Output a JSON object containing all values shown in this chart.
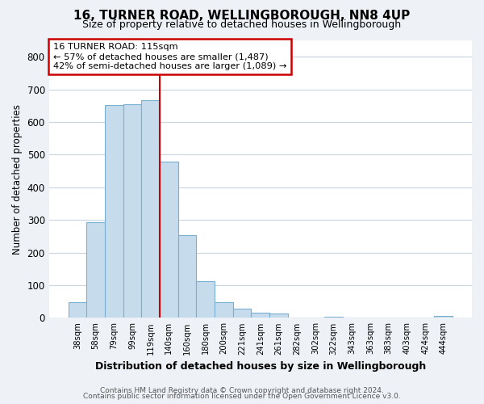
{
  "title": "16, TURNER ROAD, WELLINGBOROUGH, NN8 4UP",
  "subtitle": "Size of property relative to detached houses in Wellingborough",
  "xlabel": "Distribution of detached houses by size in Wellingborough",
  "ylabel": "Number of detached properties",
  "bar_labels": [
    "38sqm",
    "58sqm",
    "79sqm",
    "99sqm",
    "119sqm",
    "140sqm",
    "160sqm",
    "180sqm",
    "200sqm",
    "221sqm",
    "241sqm",
    "261sqm",
    "282sqm",
    "302sqm",
    "322sqm",
    "343sqm",
    "363sqm",
    "383sqm",
    "403sqm",
    "424sqm",
    "444sqm"
  ],
  "bar_values": [
    47,
    293,
    651,
    655,
    668,
    478,
    253,
    113,
    48,
    28,
    15,
    14,
    2,
    2,
    3,
    1,
    0,
    0,
    0,
    0,
    5
  ],
  "bar_color": "#c6dcec",
  "bar_edge_color": "#7aafd4",
  "highlight_line_color": "#cc0000",
  "highlight_line_index": 4,
  "annotation_title": "16 TURNER ROAD: 115sqm",
  "annotation_line1": "← 57% of detached houses are smaller (1,487)",
  "annotation_line2": "42% of semi-detached houses are larger (1,089) →",
  "annotation_box_color": "#ffffff",
  "annotation_box_edge_color": "#cc0000",
  "ylim": [
    0,
    850
  ],
  "yticks": [
    0,
    100,
    200,
    300,
    400,
    500,
    600,
    700,
    800
  ],
  "footer1": "Contains HM Land Registry data © Crown copyright and database right 2024.",
  "footer2": "Contains public sector information licensed under the Open Government Licence v3.0.",
  "bg_color": "#eef2f7",
  "plot_bg_color": "#ffffff",
  "grid_color": "#c8d4e0"
}
